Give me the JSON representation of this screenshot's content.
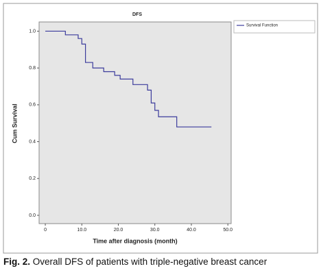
{
  "chart_data": {
    "type": "step",
    "title": "DFS",
    "x_label": "Time after diagnosis (month)",
    "y_label": "Cum Survival",
    "series": [
      {
        "name": "Survival Function",
        "color": "#3b3b9c",
        "x": [
          0,
          5.5,
          9,
          10,
          11,
          13,
          16,
          19,
          20.5,
          24,
          28,
          29,
          30,
          31,
          36,
          45.5
        ],
        "values": [
          1.0,
          0.98,
          0.96,
          0.93,
          0.83,
          0.8,
          0.78,
          0.76,
          0.74,
          0.71,
          0.68,
          0.61,
          0.57,
          0.535,
          0.48,
          0.48
        ]
      }
    ],
    "xlim": [
      -1.7,
      50.9
    ],
    "ylim": [
      -0.045,
      1.05
    ],
    "xticks": [
      0,
      {
        "value": 10,
        "label": "10.0"
      },
      {
        "value": 20,
        "label": "20.0"
      },
      {
        "value": 30,
        "label": "30.0"
      },
      {
        "value": 40,
        "label": "40.0"
      },
      {
        "value": 50,
        "label": "50.0"
      }
    ],
    "yticks": [
      {
        "value": 0,
        "label": "0.0"
      },
      {
        "value": 0.2,
        "label": "0.2"
      },
      {
        "value": 0.4,
        "label": "0.4"
      },
      {
        "value": 0.6,
        "label": "0.6"
      },
      {
        "value": 0.8,
        "label": "0.8"
      },
      {
        "value": 1,
        "label": "1.0"
      }
    ],
    "plot_background": "#e6e6e6"
  },
  "caption": {
    "label": "Fig. 2.",
    "text": "Overall DFS of patients with triple-negative breast cancer"
  }
}
